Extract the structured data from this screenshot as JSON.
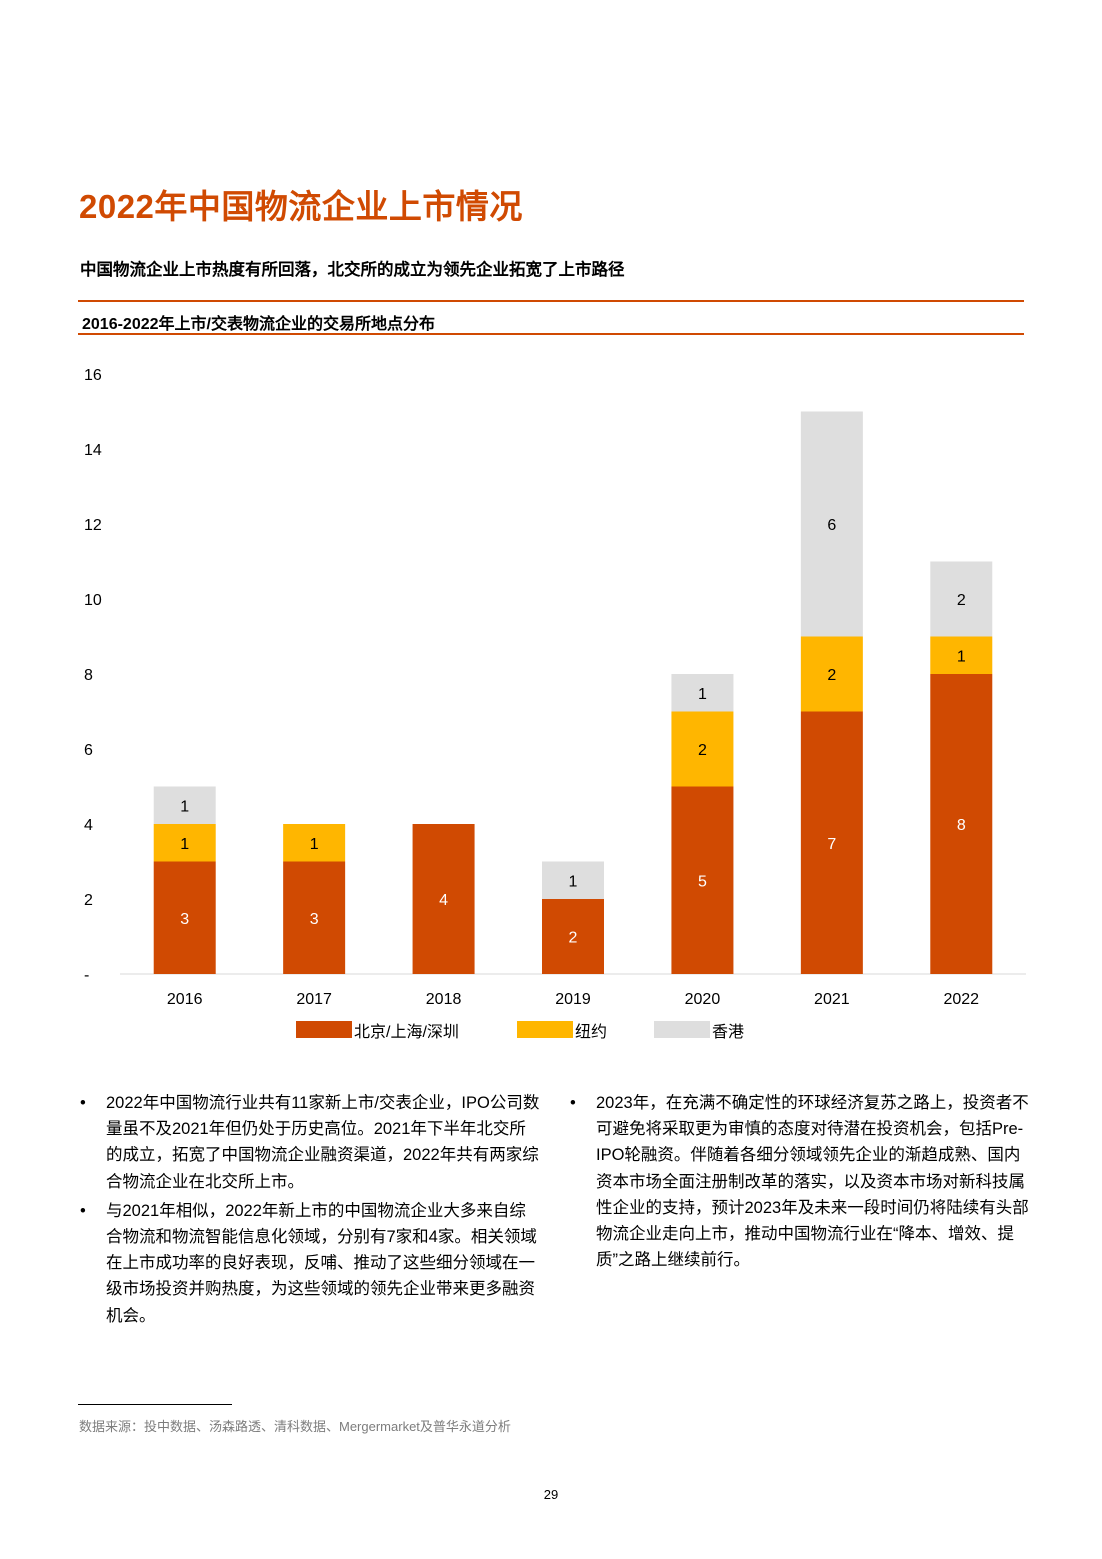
{
  "page": {
    "title": "2022年中国物流企业上市情况",
    "subtitle": "中国物流企业上市热度有所回落，北交所的成立为领先企业拓宽了上市路径",
    "chart_heading": "2016-2022年上市/交表物流企业的交易所地点分布",
    "left_bullets": [
      "2022年中国物流行业共有11家新上市/交表企业，IPO公司数量虽不及2021年但仍处于历史高位。2021年下半年北交所的成立，拓宽了中国物流企业融资渠道，2022年共有两家综合物流企业在北交所上市。",
      "与2021年相似，2022年新上市的中国物流企业大多来自综合物流和物流智能信息化领域，分别有7家和4家。相关领域在上市成功率的良好表现，反哺、推动了这些细分领域在一级市场投资并购热度，为这些领域的领先企业带来更多融资机会。"
    ],
    "right_bullets": [
      "2023年，在充满不确定性的环球经济复苏之路上，投资者不可避免将采取更为审慎的态度对待潜在投资机会，包括Pre-IPO轮融资。伴随着各细分领域领先企业的渐趋成熟、国内资本市场全面注册制改革的落实，以及资本市场对新科技属性企业的支持，预计2023年及未来一段时间仍将陆续有头部物流企业走向上市，推动中国物流行业在“降本、增效、提质”之路上继续前行。"
    ],
    "bullet_symbol": "•",
    "footnote": "数据来源：投中数据、汤森路透、清科数据、Mergermarket及普华永道分析",
    "page_number": "29"
  },
  "chart_data": {
    "type": "bar",
    "stacked": true,
    "title": "2016-2022年上市/交表物流企业的交易所地点分布",
    "categories": [
      "2016",
      "2017",
      "2018",
      "2019",
      "2020",
      "2021",
      "2022"
    ],
    "series": [
      {
        "name": "北京/上海/深圳",
        "color": "#d04a02",
        "label_color": "#ffffff",
        "values": [
          3,
          3,
          4,
          2,
          5,
          7,
          8
        ]
      },
      {
        "name": "纽约",
        "color": "#ffb600",
        "label_color": "#000000",
        "values": [
          1,
          1,
          0,
          0,
          2,
          2,
          1
        ]
      },
      {
        "name": "香港",
        "color": "#dedede",
        "label_color": "#000000",
        "values": [
          1,
          0,
          0,
          1,
          1,
          6,
          2
        ]
      }
    ],
    "ylim": [
      0,
      16
    ],
    "yticks": [
      0,
      2,
      4,
      6,
      8,
      10,
      12,
      14,
      16
    ],
    "ytick_labels": [
      "-",
      "2",
      "4",
      "6",
      "8",
      "10",
      "12",
      "14",
      "16"
    ],
    "grid": false,
    "legend": "bottom"
  }
}
